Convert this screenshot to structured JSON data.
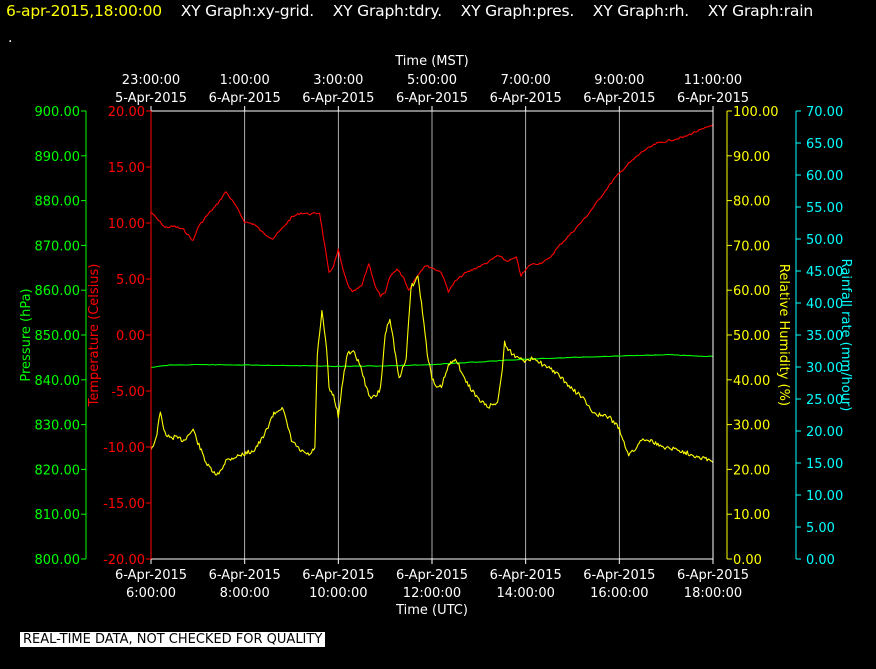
{
  "header": {
    "datetime": "6-apr-2015,18:00:00",
    "graph_labels": [
      "XY Graph:xy-grid.",
      "XY Graph:tdry.",
      "XY Graph:pres.",
      "XY Graph:rh.",
      "XY Graph:rain"
    ],
    "marker": "."
  },
  "footer": {
    "notice": "REAL-TIME DATA, NOT CHECKED FOR QUALITY"
  },
  "colors": {
    "background": "#000000",
    "frame": "#ffffff",
    "grid": "#ffffff",
    "pressure": "#00ff00",
    "temperature": "#ff0000",
    "humidity": "#ffff00",
    "rainfall": "#00ffff",
    "datetime_text": "#ffff00",
    "label_text": "#ffffff"
  },
  "chart_data": {
    "type": "line",
    "x_top": {
      "title": "Time (MST)",
      "ticks": [
        {
          "time": "23:00:00",
          "date": "5-Apr-2015"
        },
        {
          "time": "1:00:00",
          "date": "6-Apr-2015"
        },
        {
          "time": "3:00:00",
          "date": "6-Apr-2015"
        },
        {
          "time": "5:00:00",
          "date": "6-Apr-2015"
        },
        {
          "time": "7:00:00",
          "date": "6-Apr-2015"
        },
        {
          "time": "9:00:00",
          "date": "6-Apr-2015"
        },
        {
          "time": "11:00:00",
          "date": "6-Apr-2015"
        }
      ]
    },
    "x_bottom": {
      "title": "Time (UTC)",
      "range_hours_utc": [
        6,
        18
      ],
      "ticks": [
        {
          "date": "6-Apr-2015",
          "time": "6:00:00"
        },
        {
          "date": "6-Apr-2015",
          "time": "8:00:00"
        },
        {
          "date": "6-Apr-2015",
          "time": "10:00:00"
        },
        {
          "date": "6-Apr-2015",
          "time": "12:00:00"
        },
        {
          "date": "6-Apr-2015",
          "time": "14:00:00"
        },
        {
          "date": "6-Apr-2015",
          "time": "16:00:00"
        },
        {
          "date": "6-Apr-2015",
          "time": "18:00:00"
        }
      ]
    },
    "y_pressure": {
      "title": "Pressure (hPa)",
      "range": [
        800,
        900
      ],
      "ticks": [
        "800.00",
        "810.00",
        "820.00",
        "830.00",
        "840.00",
        "850.00",
        "860.00",
        "870.00",
        "880.00",
        "890.00",
        "900.00"
      ]
    },
    "y_temperature": {
      "title": "Temperature (Celsius)",
      "range": [
        -20,
        20
      ],
      "ticks": [
        "-20.00",
        "-15.00",
        "-10.00",
        "-5.00",
        "0.00",
        "5.00",
        "10.00",
        "15.00",
        "20.00"
      ]
    },
    "y_humidity": {
      "title": "Relative Humidity (%)",
      "range": [
        0,
        100
      ],
      "ticks": [
        "0.00",
        "10.00",
        "20.00",
        "30.00",
        "40.00",
        "50.00",
        "60.00",
        "70.00",
        "80.00",
        "90.00",
        "100.00"
      ]
    },
    "y_rainfall": {
      "title": "Rainfall rate (mm/hour)",
      "range": [
        0,
        70
      ],
      "ticks": [
        "0.00",
        "5.00",
        "10.00",
        "15.00",
        "20.00",
        "25.00",
        "30.00",
        "35.00",
        "40.00",
        "45.00",
        "50.00",
        "55.00",
        "60.00",
        "65.00",
        "70.00"
      ]
    },
    "grid": true,
    "series": [
      {
        "key": "temperature",
        "axis": "y_temperature",
        "color": "#ff0000",
        "x": [
          6.0,
          6.1,
          6.3,
          6.5,
          6.7,
          6.9,
          7.0,
          7.2,
          7.4,
          7.6,
          7.8,
          8.0,
          8.2,
          8.4,
          8.6,
          8.8,
          9.0,
          9.2,
          9.4,
          9.6,
          9.65,
          9.8,
          9.9,
          10.0,
          10.1,
          10.2,
          10.3,
          10.5,
          10.65,
          10.8,
          10.9,
          11.0,
          11.1,
          11.25,
          11.4,
          11.5,
          11.7,
          11.85,
          12.0,
          12.2,
          12.35,
          12.5,
          12.7,
          12.9,
          13.0,
          13.2,
          13.4,
          13.6,
          13.8,
          13.9,
          14.1,
          14.3,
          14.5,
          14.7,
          15.0,
          15.3,
          15.6,
          15.9,
          16.2,
          16.5,
          16.8,
          17.0,
          17.2,
          17.4,
          17.6,
          17.8,
          17.95,
          18.0
        ],
        "y": [
          11.0,
          10.5,
          9.6,
          9.7,
          9.4,
          8.4,
          9.6,
          10.7,
          11.6,
          12.8,
          11.6,
          10.1,
          9.9,
          9.1,
          8.6,
          9.5,
          10.5,
          10.9,
          10.8,
          10.9,
          9.6,
          5.5,
          6.2,
          7.6,
          5.8,
          4.5,
          3.8,
          4.4,
          6.4,
          4.2,
          3.5,
          3.7,
          5.2,
          5.9,
          5.1,
          4.0,
          5.4,
          6.2,
          6.0,
          5.6,
          3.9,
          4.8,
          5.5,
          5.9,
          6.1,
          6.5,
          7.1,
          6.6,
          6.9,
          5.3,
          6.3,
          6.4,
          6.8,
          7.9,
          9.2,
          10.6,
          12.3,
          14.0,
          15.3,
          16.4,
          17.1,
          17.3,
          17.5,
          17.7,
          18.1,
          18.4,
          18.7,
          18.8
        ]
      },
      {
        "key": "pressure",
        "axis": "y_pressure",
        "color": "#00ff00",
        "x": [
          6.0,
          6.2,
          6.4,
          7.0,
          8.0,
          9.0,
          10.0,
          11.0,
          12.0,
          13.0,
          14.0,
          15.0,
          16.0,
          17.0,
          18.0
        ],
        "y": [
          842.8,
          843.0,
          843.3,
          843.4,
          843.3,
          843.2,
          843.0,
          843.1,
          843.4,
          844.0,
          844.6,
          845.0,
          845.3,
          845.6,
          845.2
        ]
      },
      {
        "key": "humidity",
        "axis": "y_humidity",
        "color": "#ffff00",
        "x": [
          6.0,
          6.1,
          6.2,
          6.3,
          6.4,
          6.5,
          6.7,
          6.9,
          7.0,
          7.2,
          7.4,
          7.5,
          7.6,
          7.8,
          8.0,
          8.2,
          8.4,
          8.6,
          8.8,
          9.0,
          9.2,
          9.4,
          9.5,
          9.55,
          9.65,
          9.75,
          9.8,
          9.9,
          10.0,
          10.1,
          10.2,
          10.35,
          10.5,
          10.6,
          10.7,
          10.8,
          10.9,
          11.0,
          11.1,
          11.2,
          11.3,
          11.45,
          11.55,
          11.7,
          11.8,
          11.9,
          12.0,
          12.1,
          12.2,
          12.35,
          12.5,
          12.7,
          12.9,
          13.0,
          13.2,
          13.4,
          13.5,
          13.55,
          13.6,
          13.7,
          13.8,
          13.9,
          14.0,
          14.2,
          14.4,
          14.6,
          14.8,
          15.0,
          15.2,
          15.4,
          15.6,
          15.8,
          16.0,
          16.1,
          16.2,
          16.3,
          16.5,
          16.7,
          16.9,
          17.1,
          17.3,
          17.5,
          17.7,
          17.9,
          18.0
        ],
        "y": [
          24.6,
          26.5,
          32.7,
          28.0,
          27.0,
          27.2,
          26.5,
          28.9,
          26.0,
          21.0,
          18.5,
          20.0,
          22.0,
          22.8,
          23.5,
          24.3,
          27.2,
          32.1,
          34.0,
          26.5,
          24.0,
          23.2,
          25.0,
          45.3,
          55.1,
          47.0,
          38.0,
          36.5,
          32.0,
          40.0,
          46.3,
          46.0,
          42.2,
          38.0,
          36.0,
          36.3,
          38.0,
          50.1,
          54.0,
          47.0,
          40.0,
          45.0,
          60.6,
          63.1,
          55.0,
          46.0,
          40.3,
          38.0,
          38.5,
          43.0,
          45.0,
          40.0,
          37.0,
          35.5,
          34.0,
          35.0,
          42.0,
          48.8,
          47.0,
          46.0,
          45.0,
          45.2,
          44.0,
          45.0,
          43.0,
          42.0,
          40.0,
          37.8,
          36.3,
          33.0,
          32.0,
          31.6,
          29.0,
          26.0,
          23.4,
          24.0,
          27.0,
          26.3,
          25.0,
          24.8,
          24.2,
          23.5,
          22.8,
          22.3,
          21.5
        ]
      }
    ]
  }
}
